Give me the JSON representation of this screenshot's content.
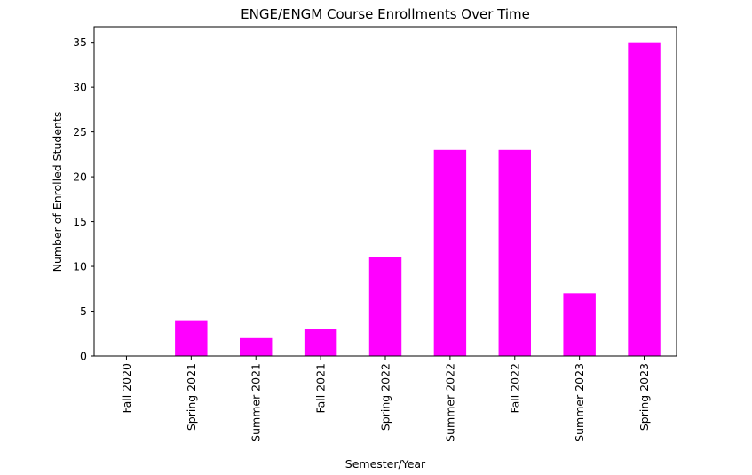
{
  "chart_data": {
    "type": "bar",
    "title": "ENGE/ENGM Course Enrollments Over Time",
    "xlabel": "Semester/Year",
    "ylabel": "Number of Enrolled Students",
    "categories": [
      "Fall 2020",
      "Spring 2021",
      "Summer 2021",
      "Fall 2021",
      "Spring 2022",
      "Summer 2022",
      "Fall 2022",
      "Summer 2023",
      "Spring 2023"
    ],
    "values": [
      0,
      4,
      2,
      3,
      11,
      23,
      23,
      7,
      35
    ],
    "ylim": [
      0,
      36.75
    ],
    "yticks": [
      0,
      5,
      10,
      15,
      20,
      25,
      30,
      35
    ],
    "bar_color": "#ff00ff",
    "grid": false,
    "legend": "none"
  }
}
